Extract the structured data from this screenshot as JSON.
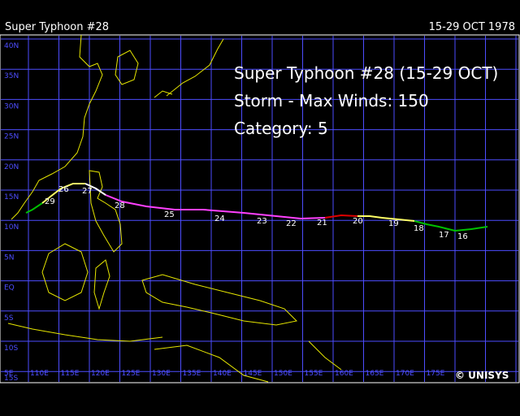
{
  "header": {
    "title": "Super Typhoon  #28",
    "date": "15-29 OCT 1978"
  },
  "info": {
    "lines": [
      "Super Typhoon #28 (15-29 OCT)",
      "Storm - Max Winds: 150",
      "Category: 5"
    ]
  },
  "map": {
    "lat_labels": [
      "40N",
      "35N",
      "30N",
      "25N",
      "20N",
      "15N",
      "10N",
      "5N",
      "EQ",
      "5S",
      "10S",
      "15S"
    ],
    "lon_labels": [
      "5E",
      "110E",
      "115E",
      "120E",
      "125E",
      "130E",
      "135E",
      "140E",
      "145E",
      "150E",
      "155E",
      "160E",
      "165E",
      "170E",
      "175E"
    ]
  },
  "track": {
    "day_labels": [
      "29",
      "26",
      "27",
      "28",
      "25",
      "24",
      "23",
      "22",
      "21",
      "20",
      "19",
      "18",
      "17",
      "16"
    ]
  },
  "logo": "© UNISYS"
}
